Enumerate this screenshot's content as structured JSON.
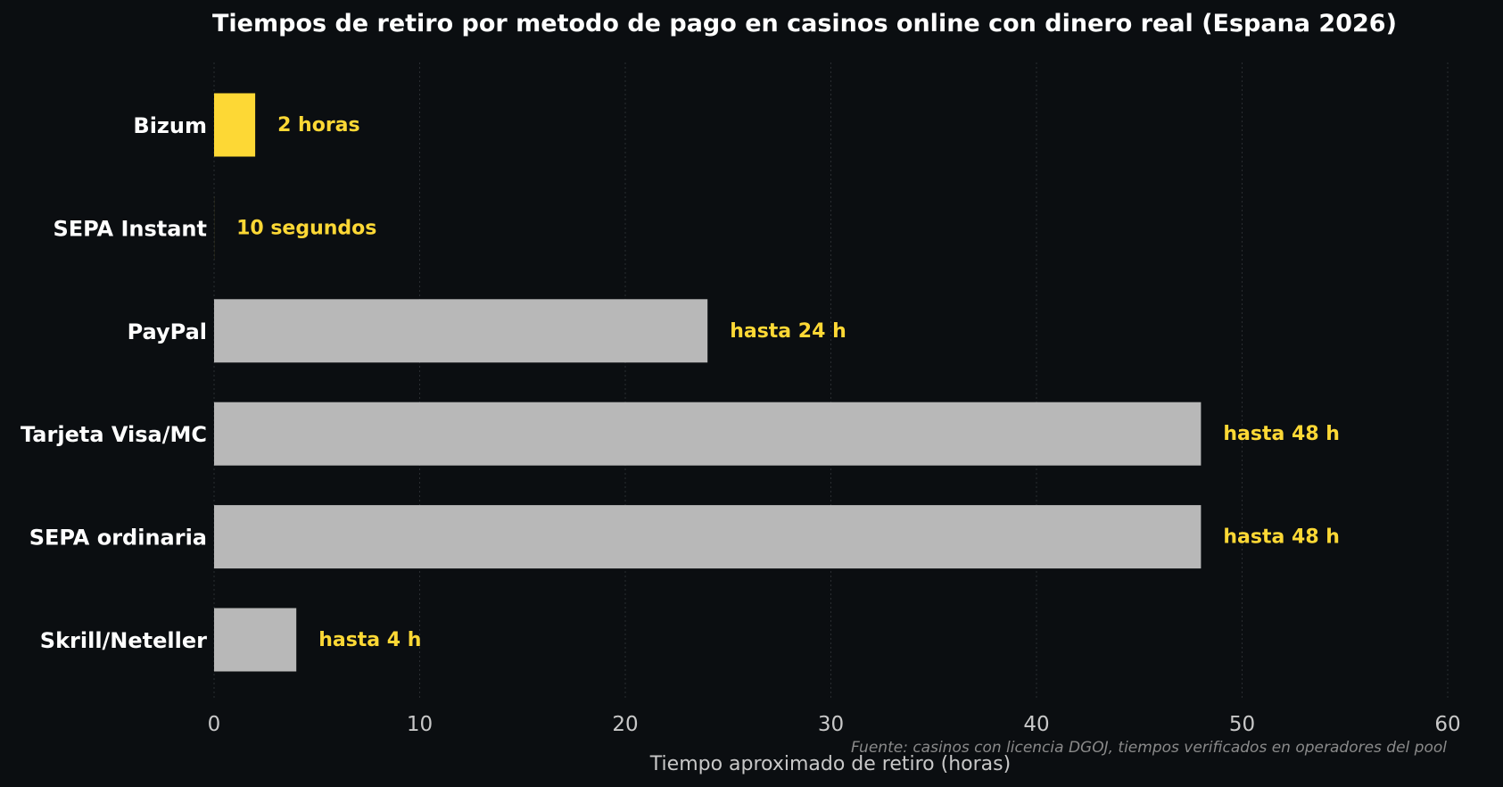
{
  "chart_data": {
    "type": "bar",
    "orientation": "horizontal",
    "title": "Tiempos de retiro por metodo de pago en casinos online con dinero real (Espana 2026)",
    "xlabel": "Tiempo aproximado de retiro (horas)",
    "ylabel": "",
    "xlim": [
      0,
      60
    ],
    "xticks": [
      0,
      10,
      20,
      30,
      40,
      50,
      60
    ],
    "grid": "x",
    "categories": [
      "Bizum",
      "SEPA Instant",
      "PayPal",
      "Tarjeta Visa/MC",
      "SEPA ordinaria",
      "Skrill/Neteller"
    ],
    "values": [
      2,
      0.0028,
      24,
      48,
      48,
      4
    ],
    "bar_labels": [
      "2 horas",
      "10 segundos",
      "hasta 24 h",
      "hasta 48 h",
      "hasta 48 h",
      "hasta 4 h"
    ],
    "highlighted": [
      true,
      true,
      false,
      false,
      false,
      false
    ],
    "source_note": "Fuente: casinos con licencia DGOJ, tiempos verificados en operadores del pool"
  },
  "colors": {
    "background": "#0b0e11",
    "highlight_bar": "#fdd835",
    "default_bar": "#b8b8b8",
    "label_text": "#fdd835",
    "category_text": "#ffffff",
    "tick_text": "#c8c8c8",
    "grid": "#2a2d31"
  }
}
